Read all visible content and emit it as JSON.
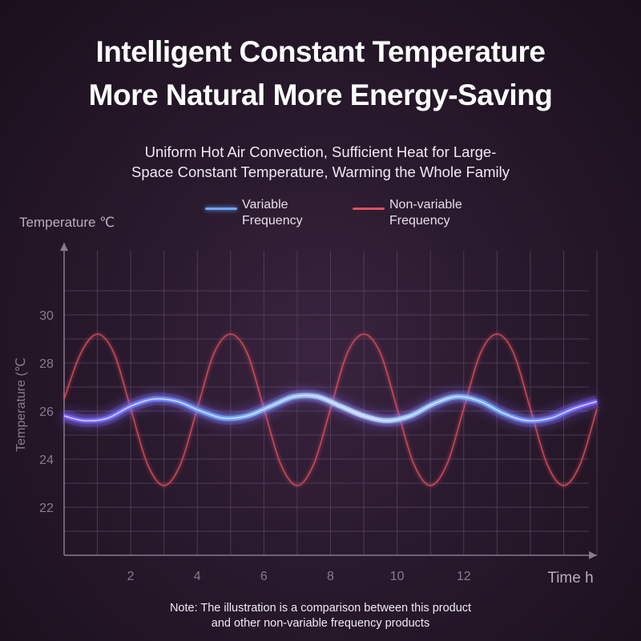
{
  "header": {
    "title_line1": "Intelligent Constant Temperature",
    "title_line2": "More Natural More Energy-Saving",
    "subtitle_line1": "Uniform Hot Air Convection, Sufficient Heat for Large-",
    "subtitle_line2": "Space Constant Temperature, Warming the Whole Family"
  },
  "note": {
    "line1": "Note: The illustration is a comparison between this product",
    "line2": "and other non-variable frequency products"
  },
  "colors": {
    "variable": "#6fa8ff",
    "variable_glow": "#8a6cff",
    "non_variable": "#e0505e",
    "grid": "#5a4660",
    "axis": "#8a7890"
  },
  "chart_data": {
    "type": "line",
    "title": "",
    "y_axis_title_top": "Temperature ℃",
    "y_axis_title_side": "Temperature (℃",
    "x_axis_title": "Time h",
    "xlim": [
      0,
      16
    ],
    "ylim": [
      20,
      33
    ],
    "x_ticks": [
      2,
      4,
      6,
      8,
      10,
      12
    ],
    "y_ticks": [
      22,
      24,
      26,
      28,
      30
    ],
    "grid": true,
    "legend_position": "top-center",
    "series": [
      {
        "name": "Variable Frequency",
        "color": "#6fa8ff",
        "x": [
          0,
          0.6,
          1.3,
          2,
          2.7,
          3.4,
          4.1,
          4.8,
          5.5,
          6.2,
          6.9,
          7.6,
          8.3,
          9,
          9.7,
          10.4,
          11.1,
          11.8,
          12.5,
          13.2,
          13.9,
          14.6,
          15.3,
          16
        ],
        "values": [
          25.8,
          25.6,
          25.7,
          26.2,
          26.5,
          26.4,
          26.0,
          25.7,
          25.8,
          26.2,
          26.6,
          26.6,
          26.2,
          25.8,
          25.6,
          25.8,
          26.3,
          26.6,
          26.4,
          25.9,
          25.6,
          25.7,
          26.1,
          26.4
        ]
      },
      {
        "name": "Non-variable Frequency",
        "color": "#e0505e",
        "x": [
          0,
          0.5,
          1,
          1.5,
          2,
          2.5,
          3,
          3.5,
          4,
          4.5,
          5,
          5.5,
          6,
          6.5,
          7,
          7.5,
          8,
          8.5,
          9,
          9.5,
          10,
          10.5,
          11,
          11.5,
          12,
          12.5,
          13,
          13.5,
          14,
          14.5,
          15,
          15.5,
          16
        ],
        "values": [
          26.5,
          28.4,
          29.2,
          28.4,
          26.1,
          23.8,
          22.9,
          23.8,
          26.1,
          28.4,
          29.2,
          28.4,
          26.1,
          23.8,
          22.9,
          23.8,
          26.1,
          28.4,
          29.2,
          28.4,
          26.1,
          23.8,
          22.9,
          23.8,
          26.1,
          28.4,
          29.2,
          28.4,
          26.1,
          23.8,
          22.9,
          23.8,
          26.1
        ]
      }
    ]
  }
}
